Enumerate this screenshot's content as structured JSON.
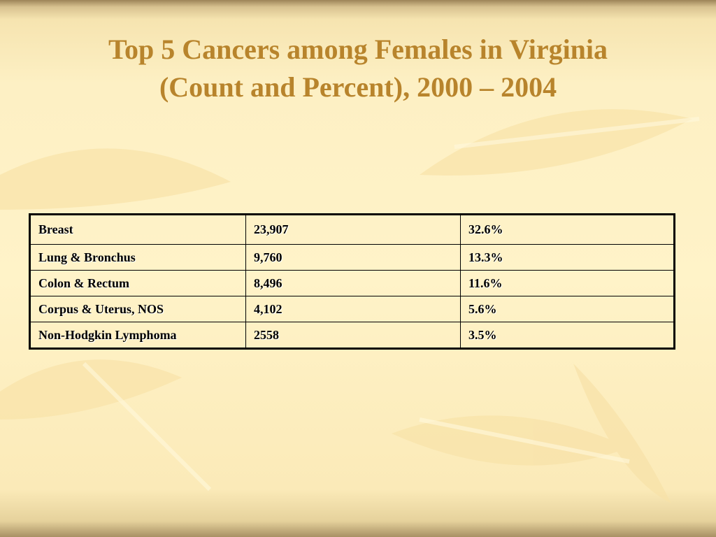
{
  "header": {
    "title": [
      "Top 5 Cancers among Females in Virginia",
      "(Count and Percent), 2000 – 2004"
    ]
  },
  "table": {
    "rows": [
      [
        "Breast",
        "23,907",
        "32.6%"
      ],
      [
        "Lung & Bronchus",
        "9,760",
        "13.3%"
      ],
      [
        "Colon & Rectum",
        "8,496",
        "11.6%"
      ],
      [
        "Corpus & Uterus, NOS",
        "4,102",
        "5.6%"
      ],
      [
        "Non-Hodgkin Lymphoma",
        "2558",
        "3.5%"
      ]
    ]
  }
}
